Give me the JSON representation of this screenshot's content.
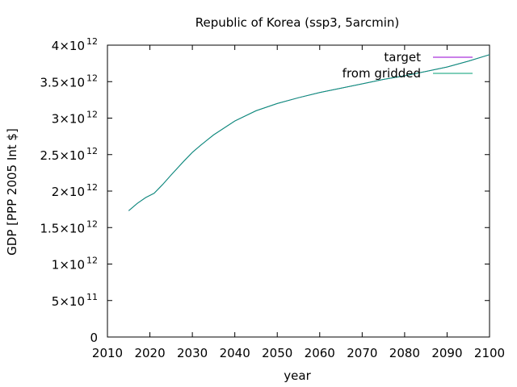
{
  "chart_data": {
    "type": "line",
    "title": "Republic of Korea (ssp3, 5arcmin)",
    "xlabel": "year",
    "ylabel": "GDP [PPP 2005 Int $]",
    "xlim": [
      2010,
      2100
    ],
    "ylim": [
      0,
      4000000000000.0
    ],
    "xticks": [
      "2010",
      "2020",
      "2030",
      "2040",
      "2050",
      "2060",
      "2070",
      "2080",
      "2090",
      "2100"
    ],
    "yticks": [
      {
        "mant": "0",
        "exp": ""
      },
      {
        "mant": "5×10",
        "exp": "11"
      },
      {
        "mant": "1×10",
        "exp": "12"
      },
      {
        "mant": "1.5×10",
        "exp": "12"
      },
      {
        "mant": "2×10",
        "exp": "12"
      },
      {
        "mant": "2.5×10",
        "exp": "12"
      },
      {
        "mant": "3×10",
        "exp": "12"
      },
      {
        "mant": "3.5×10",
        "exp": "12"
      },
      {
        "mant": "4×10",
        "exp": "12"
      }
    ],
    "legend_position": "top-right",
    "x": [
      2015,
      2017,
      2019,
      2021,
      2023,
      2025,
      2028,
      2030,
      2032,
      2035,
      2040,
      2045,
      2050,
      2055,
      2060,
      2065,
      2070,
      2075,
      2080,
      2085,
      2090,
      2095,
      2100
    ],
    "series": [
      {
        "name": "target",
        "color": "#9400d3",
        "values": [
          1730000000000.0,
          1830000000000.0,
          1910000000000.0,
          1970000000000.0,
          2090000000000.0,
          2220000000000.0,
          2410000000000.0,
          2530000000000.0,
          2630000000000.0,
          2770000000000.0,
          2960000000000.0,
          3100000000000.0,
          3200000000000.0,
          3280000000000.0,
          3350000000000.0,
          3410000000000.0,
          3470000000000.0,
          3530000000000.0,
          3580000000000.0,
          3640000000000.0,
          3700000000000.0,
          3780000000000.0,
          3870000000000.0
        ]
      },
      {
        "name": "from gridded",
        "color": "#009e73",
        "values": [
          1730000000000.0,
          1830000000000.0,
          1910000000000.0,
          1970000000000.0,
          2090000000000.0,
          2220000000000.0,
          2410000000000.0,
          2530000000000.0,
          2630000000000.0,
          2770000000000.0,
          2960000000000.0,
          3100000000000.0,
          3200000000000.0,
          3280000000000.0,
          3350000000000.0,
          3410000000000.0,
          3470000000000.0,
          3530000000000.0,
          3580000000000.0,
          3640000000000.0,
          3700000000000.0,
          3780000000000.0,
          3870000000000.0
        ]
      }
    ]
  }
}
